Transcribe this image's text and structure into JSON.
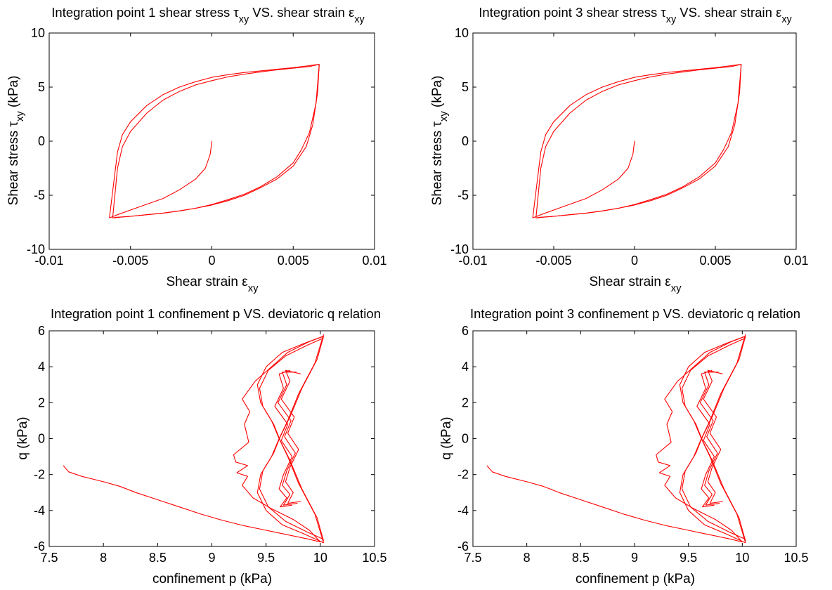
{
  "chart_data": [
    {
      "type": "line",
      "title_parts": [
        "Integration point 1 shear stress ",
        "τ",
        "xy",
        " VS. shear strain ",
        "ε",
        "xy"
      ],
      "xlabel_parts": [
        "Shear strain ",
        "ε",
        "xy"
      ],
      "ylabel_parts": [
        "Shear stress ",
        "τ",
        "xy",
        " (kPa)"
      ],
      "xlim": [
        -0.01,
        0.01
      ],
      "ylim": [
        -10,
        10
      ],
      "xticks": [
        -0.01,
        -0.005,
        0,
        0.005,
        0.01
      ],
      "xtick_labels": [
        "-0.01",
        "-0.005",
        "0",
        "0.005",
        "0.01"
      ],
      "yticks": [
        -10,
        -5,
        0,
        5,
        10
      ],
      "ytick_labels": [
        "-10",
        "-5",
        "0",
        "5",
        "10"
      ],
      "grid": false,
      "series_color": "#ff0000",
      "series": [
        {
          "x": [
            0,
            -0.0001,
            -0.0004,
            -0.001,
            -0.002,
            -0.003,
            -0.0045,
            -0.0058,
            -0.0063
          ],
          "y": [
            0,
            -1.2,
            -2.5,
            -3.5,
            -4.5,
            -5.3,
            -6.1,
            -6.8,
            -7.1
          ]
        },
        {
          "x": [
            -0.0063,
            -0.0058,
            -0.0055,
            -0.005,
            -0.004,
            -0.003,
            -0.002,
            -0.001,
            0,
            0.001,
            0.002,
            0.003,
            0.004,
            0.005,
            0.0058,
            0.0063,
            0.0066
          ],
          "y": [
            -7.1,
            -1.0,
            0.6,
            1.8,
            3.3,
            4.3,
            5.0,
            5.5,
            5.9,
            6.15,
            6.35,
            6.5,
            6.65,
            6.8,
            6.95,
            7.05,
            7.1
          ]
        },
        {
          "x": [
            0.0066,
            0.0065,
            0.0062,
            0.0058,
            0.005,
            0.004,
            0.003,
            0.002,
            0.001,
            0,
            -0.001,
            -0.002,
            -0.003,
            -0.004,
            -0.005,
            -0.0058,
            -0.0061
          ],
          "y": [
            7.1,
            4.5,
            1.5,
            -0.5,
            -2.3,
            -3.5,
            -4.3,
            -5.0,
            -5.5,
            -5.9,
            -6.2,
            -6.45,
            -6.65,
            -6.8,
            -6.95,
            -7.05,
            -7.1
          ]
        },
        {
          "x": [
            -0.0061,
            -0.0058,
            -0.0055,
            -0.005,
            -0.004,
            -0.003,
            -0.002,
            -0.001,
            0,
            0.001,
            0.002,
            0.003,
            0.004,
            0.005,
            0.006,
            0.0066
          ],
          "y": [
            -7.1,
            -2.5,
            -0.5,
            0.9,
            2.6,
            3.8,
            4.6,
            5.2,
            5.6,
            5.95,
            6.2,
            6.4,
            6.6,
            6.75,
            6.9,
            7.1
          ]
        },
        {
          "x": [
            0.0066,
            0.0064,
            0.006,
            0.0055,
            0.005,
            0.004,
            0.003,
            0.002,
            0.001,
            0,
            -0.001,
            -0.002,
            -0.003,
            -0.004,
            -0.005,
            -0.006
          ],
          "y": [
            7.1,
            3.5,
            0.8,
            -0.8,
            -2.0,
            -3.3,
            -4.2,
            -4.9,
            -5.4,
            -5.85,
            -6.2,
            -6.45,
            -6.65,
            -6.8,
            -6.95,
            -7.05
          ]
        }
      ]
    },
    {
      "type": "line",
      "title_parts": [
        "Integration point 3 shear stress ",
        "τ",
        "xy",
        " VS. shear strain ",
        "ε",
        "xy"
      ],
      "xlabel_parts": [
        "Shear strain ",
        "ε",
        "xy"
      ],
      "ylabel_parts": [
        "Shear stress ",
        "τ",
        "xy",
        " (kPa)"
      ],
      "xlim": [
        -0.01,
        0.01
      ],
      "ylim": [
        -10,
        10
      ],
      "xticks": [
        -0.01,
        -0.005,
        0,
        0.005,
        0.01
      ],
      "xtick_labels": [
        "-0.01",
        "-0.005",
        "0",
        "0.005",
        "0.01"
      ],
      "yticks": [
        -10,
        -5,
        0,
        5,
        10
      ],
      "ytick_labels": [
        "-10",
        "-5",
        "0",
        "5",
        "10"
      ],
      "grid": false,
      "series_color": "#ff0000",
      "series": [
        {
          "x": [
            0,
            -0.0001,
            -0.0004,
            -0.001,
            -0.002,
            -0.003,
            -0.0045,
            -0.0058,
            -0.0063
          ],
          "y": [
            0,
            -1.2,
            -2.5,
            -3.5,
            -4.5,
            -5.3,
            -6.1,
            -6.8,
            -7.1
          ]
        },
        {
          "x": [
            -0.0063,
            -0.0058,
            -0.0055,
            -0.005,
            -0.004,
            -0.003,
            -0.002,
            -0.001,
            0,
            0.001,
            0.002,
            0.003,
            0.004,
            0.005,
            0.0058,
            0.0063,
            0.0066
          ],
          "y": [
            -7.1,
            -1.0,
            0.6,
            1.8,
            3.3,
            4.3,
            5.0,
            5.5,
            5.9,
            6.15,
            6.35,
            6.5,
            6.65,
            6.8,
            6.95,
            7.05,
            7.1
          ]
        },
        {
          "x": [
            0.0066,
            0.0065,
            0.0062,
            0.0058,
            0.005,
            0.004,
            0.003,
            0.002,
            0.001,
            0,
            -0.001,
            -0.002,
            -0.003,
            -0.004,
            -0.005,
            -0.0058,
            -0.0061
          ],
          "y": [
            7.1,
            4.5,
            1.5,
            -0.5,
            -2.3,
            -3.5,
            -4.3,
            -5.0,
            -5.5,
            -5.9,
            -6.2,
            -6.45,
            -6.65,
            -6.8,
            -6.95,
            -7.05,
            -7.1
          ]
        },
        {
          "x": [
            -0.0061,
            -0.0058,
            -0.0055,
            -0.005,
            -0.004,
            -0.003,
            -0.002,
            -0.001,
            0,
            0.001,
            0.002,
            0.003,
            0.004,
            0.005,
            0.006,
            0.0066
          ],
          "y": [
            -7.1,
            -2.5,
            -0.5,
            0.9,
            2.6,
            3.8,
            4.6,
            5.2,
            5.6,
            5.95,
            6.2,
            6.4,
            6.6,
            6.75,
            6.9,
            7.1
          ]
        },
        {
          "x": [
            0.0066,
            0.0064,
            0.006,
            0.0055,
            0.005,
            0.004,
            0.003,
            0.002,
            0.001,
            0,
            -0.001,
            -0.002,
            -0.003,
            -0.004,
            -0.005,
            -0.006
          ],
          "y": [
            7.1,
            3.5,
            0.8,
            -0.8,
            -2.0,
            -3.3,
            -4.2,
            -4.9,
            -5.4,
            -5.85,
            -6.2,
            -6.45,
            -6.65,
            -6.8,
            -6.95,
            -7.05
          ]
        }
      ]
    },
    {
      "type": "line",
      "title_parts": [
        "Integration point 1 confinement p VS. deviatoric q relation"
      ],
      "xlabel_parts": [
        "confinement p (kPa)"
      ],
      "ylabel_parts": [
        "q (kPa)"
      ],
      "xlim": [
        7.5,
        10.5
      ],
      "ylim": [
        -6,
        6
      ],
      "xticks": [
        7.5,
        8,
        8.5,
        9,
        9.5,
        10,
        10.5
      ],
      "xtick_labels": [
        "7.5",
        "8",
        "8.5",
        "9",
        "9.5",
        "10",
        "10.5"
      ],
      "yticks": [
        -6,
        -4,
        -2,
        0,
        2,
        4,
        6
      ],
      "ytick_labels": [
        "-6",
        "-4",
        "-2",
        "0",
        "2",
        "4",
        "6"
      ],
      "grid": false,
      "series_color": "#ff0000",
      "series": [
        {
          "x": [
            7.63,
            7.68,
            7.8,
            8.0,
            8.15,
            8.3,
            8.5,
            8.7,
            8.9,
            9.1,
            9.3,
            9.5,
            9.7,
            9.9,
            10.0
          ],
          "y": [
            -1.5,
            -1.85,
            -2.1,
            -2.4,
            -2.65,
            -3.0,
            -3.4,
            -3.8,
            -4.2,
            -4.55,
            -4.85,
            -5.1,
            -5.35,
            -5.6,
            -5.75
          ]
        },
        {
          "x": [
            10.0,
            9.9,
            9.75,
            9.55,
            9.38,
            9.28,
            9.33,
            9.23,
            9.33,
            9.22,
            9.2,
            9.34,
            9.3,
            9.35,
            9.28,
            9.4,
            9.55,
            9.7,
            9.9,
            10.03
          ],
          "y": [
            -5.75,
            -5.1,
            -4.5,
            -3.9,
            -3.3,
            -2.6,
            -2.1,
            -1.9,
            -1.5,
            -1.3,
            -0.9,
            -0.2,
            0.8,
            1.5,
            2.2,
            3.2,
            4.0,
            4.8,
            5.4,
            5.7
          ]
        },
        {
          "x": [
            10.03,
            9.85,
            9.65,
            9.5,
            9.42,
            9.45,
            9.55,
            9.62,
            9.7,
            9.8,
            9.95,
            10.03
          ],
          "y": [
            5.7,
            5.3,
            4.8,
            4.0,
            3.0,
            2.0,
            1.0,
            0.0,
            -1.0,
            -2.5,
            -4.2,
            -5.8
          ]
        },
        {
          "x": [
            10.03,
            9.85,
            9.65,
            9.5,
            9.42,
            9.45,
            9.55,
            9.62,
            9.7,
            9.8,
            9.95,
            10.03
          ],
          "y": [
            -5.8,
            -5.3,
            -4.8,
            -4.0,
            -3.0,
            -2.0,
            -1.0,
            0.0,
            1.0,
            2.5,
            4.2,
            5.8
          ]
        },
        {
          "x": [
            10.03,
            9.88,
            9.68,
            9.52,
            9.44,
            9.47,
            9.57,
            9.63,
            9.72,
            9.83,
            9.97,
            10.03
          ],
          "y": [
            5.6,
            5.2,
            4.6,
            3.8,
            2.8,
            1.8,
            0.8,
            -0.1,
            -1.2,
            -2.8,
            -4.4,
            -5.7
          ]
        },
        {
          "x": [
            10.03,
            9.88,
            9.68,
            9.52,
            9.44,
            9.47,
            9.57,
            9.63,
            9.72,
            9.83,
            9.97,
            10.03
          ],
          "y": [
            -5.6,
            -5.2,
            -4.6,
            -3.8,
            -2.8,
            -1.8,
            -0.8,
            0.1,
            1.2,
            2.8,
            4.4,
            5.7
          ]
        },
        {
          "x": [
            9.82,
            9.68,
            9.72,
            9.64,
            9.76,
            9.7,
            9.8,
            9.72,
            9.68,
            9.75,
            9.7,
            9.82
          ],
          "y": [
            3.6,
            3.8,
            3.2,
            2.2,
            1.2,
            0.3,
            -0.6,
            -1.6,
            -2.4,
            -3.0,
            -3.6,
            -3.5
          ]
        },
        {
          "x": [
            9.78,
            9.65,
            9.69,
            9.61,
            9.73,
            9.67,
            9.77,
            9.69,
            9.65,
            9.72,
            9.66,
            9.79
          ],
          "y": [
            3.7,
            3.7,
            3.0,
            2.0,
            1.0,
            0.1,
            -0.8,
            -1.8,
            -2.6,
            -3.1,
            -3.7,
            -3.6
          ]
        },
        {
          "x": [
            9.72,
            9.62,
            9.66,
            9.58,
            9.7,
            9.64,
            9.74,
            9.66,
            9.62,
            9.69,
            9.63,
            9.74
          ],
          "y": [
            3.8,
            3.6,
            2.8,
            1.8,
            0.8,
            -0.1,
            -1.0,
            -2.0,
            -2.8,
            -3.3,
            -3.8,
            -3.7
          ]
        }
      ]
    },
    {
      "type": "line",
      "title_parts": [
        "Integration point 3 confinement p VS. deviatoric q relation"
      ],
      "xlabel_parts": [
        "confinement p (kPa)"
      ],
      "ylabel_parts": [
        "q (kPa)"
      ],
      "xlim": [
        7.5,
        10.5
      ],
      "ylim": [
        -6,
        6
      ],
      "xticks": [
        7.5,
        8,
        8.5,
        9,
        9.5,
        10,
        10.5
      ],
      "xtick_labels": [
        "7.5",
        "8",
        "8.5",
        "9",
        "9.5",
        "10",
        "10.5"
      ],
      "yticks": [
        -6,
        -4,
        -2,
        0,
        2,
        4,
        6
      ],
      "ytick_labels": [
        "-6",
        "-4",
        "-2",
        "0",
        "2",
        "4",
        "6"
      ],
      "grid": false,
      "series_color": "#ff0000",
      "series": [
        {
          "x": [
            7.63,
            7.68,
            7.8,
            8.0,
            8.15,
            8.3,
            8.5,
            8.7,
            8.9,
            9.1,
            9.3,
            9.5,
            9.7,
            9.9,
            10.0
          ],
          "y": [
            -1.5,
            -1.85,
            -2.1,
            -2.4,
            -2.65,
            -3.0,
            -3.4,
            -3.8,
            -4.2,
            -4.55,
            -4.85,
            -5.1,
            -5.35,
            -5.6,
            -5.75
          ]
        },
        {
          "x": [
            10.0,
            9.9,
            9.75,
            9.55,
            9.38,
            9.28,
            9.33,
            9.23,
            9.33,
            9.22,
            9.2,
            9.34,
            9.3,
            9.35,
            9.28,
            9.4,
            9.55,
            9.7,
            9.9,
            10.03
          ],
          "y": [
            -5.75,
            -5.1,
            -4.5,
            -3.9,
            -3.3,
            -2.6,
            -2.1,
            -1.9,
            -1.5,
            -1.3,
            -0.9,
            -0.2,
            0.8,
            1.5,
            2.2,
            3.2,
            4.0,
            4.8,
            5.4,
            5.7
          ]
        },
        {
          "x": [
            10.03,
            9.85,
            9.65,
            9.5,
            9.42,
            9.45,
            9.55,
            9.62,
            9.7,
            9.8,
            9.95,
            10.03
          ],
          "y": [
            5.7,
            5.3,
            4.8,
            4.0,
            3.0,
            2.0,
            1.0,
            0.0,
            -1.0,
            -2.5,
            -4.2,
            -5.8
          ]
        },
        {
          "x": [
            10.03,
            9.85,
            9.65,
            9.5,
            9.42,
            9.45,
            9.55,
            9.62,
            9.7,
            9.8,
            9.95,
            10.03
          ],
          "y": [
            -5.8,
            -5.3,
            -4.8,
            -4.0,
            -3.0,
            -2.0,
            -1.0,
            0.0,
            1.0,
            2.5,
            4.2,
            5.8
          ]
        },
        {
          "x": [
            10.03,
            9.88,
            9.68,
            9.52,
            9.44,
            9.47,
            9.57,
            9.63,
            9.72,
            9.83,
            9.97,
            10.03
          ],
          "y": [
            5.6,
            5.2,
            4.6,
            3.8,
            2.8,
            1.8,
            0.8,
            -0.1,
            -1.2,
            -2.8,
            -4.4,
            -5.7
          ]
        },
        {
          "x": [
            10.03,
            9.88,
            9.68,
            9.52,
            9.44,
            9.47,
            9.57,
            9.63,
            9.72,
            9.83,
            9.97,
            10.03
          ],
          "y": [
            -5.6,
            -5.2,
            -4.6,
            -3.8,
            -2.8,
            -1.8,
            -0.8,
            0.1,
            1.2,
            2.8,
            4.4,
            5.7
          ]
        },
        {
          "x": [
            9.82,
            9.68,
            9.72,
            9.64,
            9.76,
            9.7,
            9.8,
            9.72,
            9.68,
            9.75,
            9.7,
            9.82
          ],
          "y": [
            3.6,
            3.8,
            3.2,
            2.2,
            1.2,
            0.3,
            -0.6,
            -1.6,
            -2.4,
            -3.0,
            -3.6,
            -3.5
          ]
        },
        {
          "x": [
            9.78,
            9.65,
            9.69,
            9.61,
            9.73,
            9.67,
            9.77,
            9.69,
            9.65,
            9.72,
            9.66,
            9.79
          ],
          "y": [
            3.7,
            3.7,
            3.0,
            2.0,
            1.0,
            0.1,
            -0.8,
            -1.8,
            -2.6,
            -3.1,
            -3.7,
            -3.6
          ]
        },
        {
          "x": [
            9.72,
            9.62,
            9.66,
            9.58,
            9.7,
            9.64,
            9.74,
            9.66,
            9.62,
            9.69,
            9.63,
            9.74
          ],
          "y": [
            3.8,
            3.6,
            2.8,
            1.8,
            0.8,
            -0.1,
            -1.0,
            -2.0,
            -2.8,
            -3.3,
            -3.8,
            -3.7
          ]
        }
      ]
    }
  ]
}
